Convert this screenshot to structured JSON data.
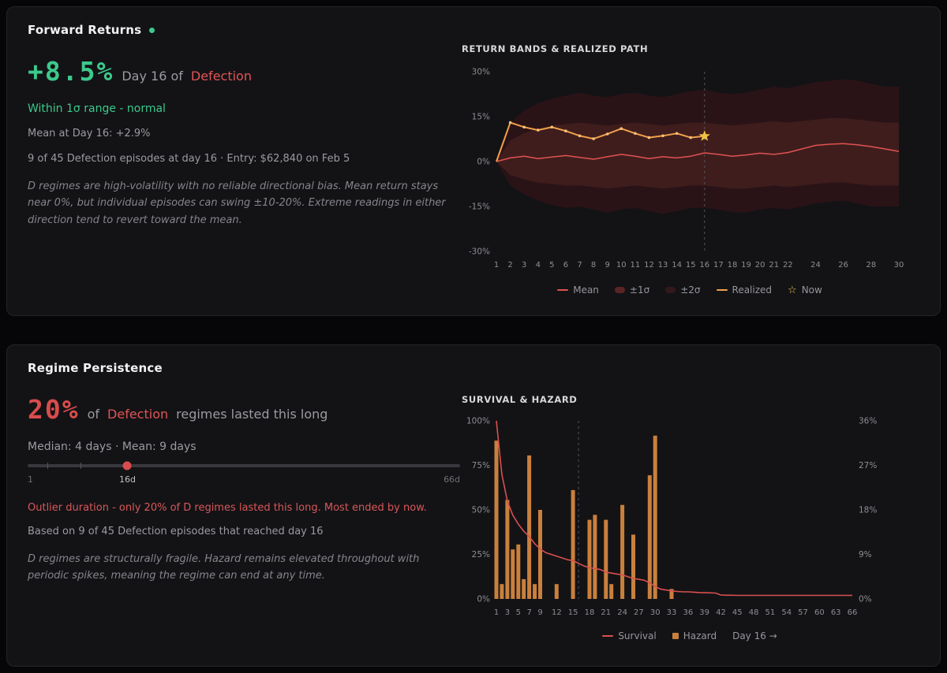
{
  "colors": {
    "accent_green": "#3dc98b",
    "accent_red": "#d94c4c",
    "regime_red": "#e05555",
    "mean_line": "#e05252",
    "realized_line": "#f2a14b",
    "survival_line": "#d94f4f",
    "hazard_bar": "#c9803d",
    "star": "#f0c344",
    "band_1sigma": "#3f1d1d",
    "band_2sigma": "#2a1316"
  },
  "forward": {
    "title": "Forward Returns",
    "headline_value": "+8.5%",
    "headline_mid": "Day 16 of",
    "regime": "Defection",
    "status": "Within 1σ range - normal",
    "mean_line": "Mean at Day 16: +2.9%",
    "episodes_line": "9 of 45 Defection episodes at day 16 · Entry: $62,840 on Feb 5",
    "description": "D regimes are high-volatility with no reliable directional bias. Mean return stays near 0%, but individual episodes can swing ±10-20%. Extreme readings in either direction tend to revert toward the mean.",
    "chart_title": "RETURN BANDS & REALIZED PATH",
    "legend": [
      "Mean",
      "±1σ",
      "±2σ",
      "Realized",
      "Now"
    ]
  },
  "persistence": {
    "title": "Regime Persistence",
    "headline_value": "20%",
    "headline_pre": "of",
    "regime": "Defection",
    "headline_post": "regimes lasted this long",
    "stats_line": "Median: 4 days · Mean: 9 days",
    "slider": {
      "min": 1,
      "max": 66,
      "value": 16,
      "ticks": [
        4,
        9
      ],
      "min_label": "1",
      "current_label": "16d",
      "max_label": "66d"
    },
    "warning": "Outlier duration - only 20% of D regimes lasted this long. Most ended by now.",
    "based_line": "Based on 9 of 45 Defection episodes that reached day 16",
    "description": "D regimes are structurally fragile. Hazard remains elevated throughout with periodic spikes, meaning the regime can end at any time.",
    "chart_title": "SURVIVAL & HAZARD",
    "legend": [
      "Survival",
      "Hazard",
      "Day 16 →"
    ]
  },
  "chart_data": [
    {
      "type": "line",
      "title": "RETURN BANDS & REALIZED PATH",
      "x_range": [
        1,
        30
      ],
      "ylim": [
        -30,
        30
      ],
      "y_tick_values": [
        30,
        15,
        0,
        -15,
        -30
      ],
      "y_tick_labels": [
        "30%",
        "15%",
        "0%",
        "-15%",
        "-30%"
      ],
      "x_ticks": [
        1,
        2,
        3,
        4,
        5,
        6,
        7,
        8,
        9,
        10,
        11,
        12,
        13,
        14,
        15,
        16,
        17,
        18,
        19,
        20,
        21,
        22,
        24,
        26,
        28,
        30
      ],
      "marker_day": 16,
      "series": [
        {
          "name": "Mean",
          "color": "#e05252",
          "values": [
            0,
            1.2,
            1.8,
            1.0,
            1.5,
            2.0,
            1.4,
            0.8,
            1.6,
            2.4,
            1.8,
            1.0,
            1.6,
            1.2,
            1.8,
            2.9,
            2.4,
            1.8,
            2.2,
            2.8,
            2.4,
            3.0,
            4.2,
            5.4,
            5.8,
            6.0,
            5.6,
            5.0,
            4.2,
            3.4
          ]
        },
        {
          "name": "Realized",
          "color": "#f2a14b",
          "values": [
            0,
            13,
            11.5,
            10.5,
            11.5,
            10.2,
            8.6,
            7.6,
            9.2,
            11.0,
            9.4,
            8.0,
            8.6,
            9.4,
            8.0,
            8.5
          ]
        }
      ],
      "bands": [
        {
          "name": "±1σ",
          "color": "#3f1d1d",
          "upper": [
            0,
            7,
            9.5,
            11,
            12,
            12.5,
            13,
            12.5,
            12,
            12.5,
            13,
            12.5,
            12,
            12.5,
            13,
            13,
            12.5,
            12,
            12.5,
            13,
            13.5,
            13,
            13.5,
            14,
            14.5,
            14.5,
            14,
            13.5,
            13,
            13
          ],
          "lower": [
            0,
            -4.5,
            -6,
            -7,
            -7.5,
            -8,
            -8,
            -8.5,
            -9,
            -8.5,
            -8,
            -8.5,
            -9,
            -8.5,
            -8,
            -8,
            -8.5,
            -9,
            -9,
            -8.5,
            -8,
            -8.5,
            -8,
            -7.5,
            -7,
            -7,
            -7.5,
            -8,
            -8,
            -8
          ]
        },
        {
          "name": "±2σ",
          "color": "#2a1316",
          "upper": [
            0,
            13,
            17,
            19.5,
            21,
            22,
            23,
            22,
            21.5,
            22.5,
            23,
            22,
            21.5,
            22.5,
            23.5,
            24,
            23,
            22.5,
            23,
            24,
            25,
            24.5,
            25.5,
            26.5,
            27,
            27.5,
            27,
            26,
            25,
            25
          ],
          "lower": [
            0,
            -8,
            -11,
            -13,
            -14.5,
            -15.5,
            -15,
            -16,
            -17,
            -16,
            -15.5,
            -16.5,
            -17.5,
            -16.5,
            -15.5,
            -15.5,
            -16,
            -17,
            -17,
            -16,
            -15.5,
            -16,
            -15,
            -14,
            -13.5,
            -13,
            -14,
            -15,
            -15,
            -15
          ]
        }
      ],
      "now": {
        "day": 16,
        "value": 8.5,
        "color": "#f0c344"
      }
    },
    {
      "type": "line+bar",
      "title": "SURVIVAL & HAZARD",
      "x_range": [
        1,
        66
      ],
      "left_ylim": [
        0,
        100
      ],
      "right_ylim": [
        0,
        36
      ],
      "left_tick_values": [
        100,
        75,
        50,
        25,
        0
      ],
      "left_tick_labels": [
        "100%",
        "75%",
        "50%",
        "25%",
        "0%"
      ],
      "right_tick_values": [
        36,
        27,
        18,
        9,
        0
      ],
      "right_tick_labels": [
        "36%",
        "27%",
        "18%",
        "9%",
        "0%"
      ],
      "x_ticks": [
        1,
        3,
        5,
        7,
        9,
        12,
        15,
        18,
        21,
        24,
        27,
        30,
        33,
        36,
        39,
        42,
        45,
        48,
        51,
        54,
        57,
        60,
        63,
        66
      ],
      "marker_day": 16,
      "survival_color": "#d94f4f",
      "hazard_color": "#c9803d",
      "survival": [
        100,
        70,
        55,
        47,
        42,
        38,
        35,
        31,
        28,
        26,
        25,
        24,
        23,
        22,
        21.5,
        20,
        18.5,
        17.5,
        17,
        16.5,
        15,
        14.5,
        14,
        13.5,
        12.5,
        11.5,
        11,
        10.5,
        9,
        7,
        5.5,
        5,
        4.5,
        4.2,
        4,
        4,
        3.8,
        3.6,
        3.5,
        3.4,
        3.3,
        2.2,
        2.1,
        2.1,
        2,
        2,
        2,
        2,
        2,
        2,
        2,
        2,
        2,
        2,
        2,
        2,
        2,
        2,
        2,
        2,
        2,
        2,
        2,
        2,
        2,
        2
      ],
      "hazard": [
        {
          "day": 1,
          "value": 32
        },
        {
          "day": 2,
          "value": 3
        },
        {
          "day": 3,
          "value": 20
        },
        {
          "day": 4,
          "value": 10
        },
        {
          "day": 5,
          "value": 11
        },
        {
          "day": 6,
          "value": 4
        },
        {
          "day": 7,
          "value": 29
        },
        {
          "day": 8,
          "value": 3
        },
        {
          "day": 9,
          "value": 18
        },
        {
          "day": 12,
          "value": 3
        },
        {
          "day": 15,
          "value": 22
        },
        {
          "day": 18,
          "value": 16
        },
        {
          "day": 19,
          "value": 17
        },
        {
          "day": 21,
          "value": 16
        },
        {
          "day": 22,
          "value": 3
        },
        {
          "day": 24,
          "value": 19
        },
        {
          "day": 26,
          "value": 13
        },
        {
          "day": 29,
          "value": 25
        },
        {
          "day": 30,
          "value": 33
        },
        {
          "day": 33,
          "value": 2
        }
      ]
    }
  ]
}
